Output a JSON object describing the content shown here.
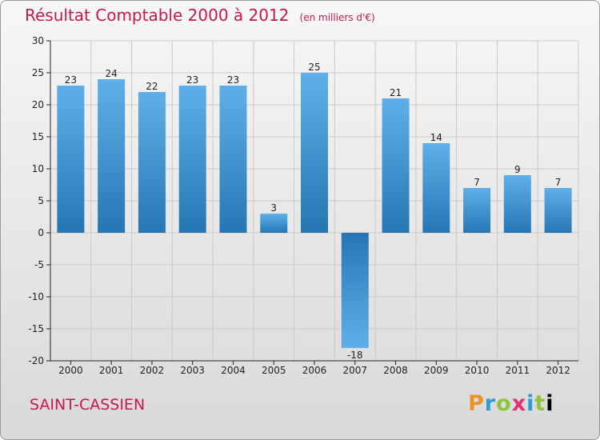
{
  "title": "Résultat Comptable 2000 à 2012",
  "subtitle": "(en milliers d'€)",
  "commune": "SAINT-CASSIEN",
  "logo": [
    "P",
    "r",
    "o",
    "x",
    "i",
    "t",
    "i"
  ],
  "colors": {
    "title": "#c8174f",
    "bar_dark": "#2576b3",
    "bar_light": "#5fb0ea",
    "grid": "#c9c9c9",
    "axis": "#222222"
  },
  "chart_data": {
    "type": "bar",
    "categories": [
      "2000",
      "2001",
      "2002",
      "2003",
      "2004",
      "2005",
      "2006",
      "2007",
      "2008",
      "2009",
      "2010",
      "2011",
      "2012"
    ],
    "values": [
      23,
      24,
      22,
      23,
      23,
      3,
      25,
      -18,
      21,
      14,
      7,
      9,
      7
    ],
    "ylim": [
      -20,
      30
    ],
    "yticks": [
      30,
      25,
      20,
      15,
      10,
      5,
      0,
      -5,
      -10,
      -15,
      -20
    ],
    "grid": true
  }
}
